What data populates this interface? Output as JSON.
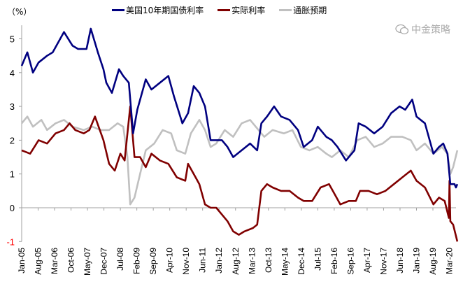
{
  "chart_data": {
    "type": "line",
    "title": "",
    "unit_label": "（%）",
    "xlabel": "",
    "ylabel": "%",
    "ylim": [
      -1,
      5.4
    ],
    "yticks": [
      5,
      4,
      3,
      2,
      1,
      0,
      -1
    ],
    "xlim": [
      2005.0,
      2020.45
    ],
    "xtick_labels": [
      "Jan-05",
      "Aug-05",
      "Mar-06",
      "Oct-06",
      "May-07",
      "Dec-07",
      "Jul-08",
      "Feb-09",
      "Sep-09",
      "Apr-10",
      "Nov-10",
      "Jun-11",
      "Jan-12",
      "Aug-12",
      "Mar-13",
      "Oct-13",
      "May-14",
      "Dec-14",
      "Jul-15",
      "Feb-16",
      "Sep-16",
      "Apr-17",
      "Nov-17",
      "Jun-18",
      "Jan-19",
      "Aug-19",
      "Mar-20"
    ],
    "legend_position": "top-center",
    "grid": false,
    "series": [
      {
        "name": "美国10年期国债利率",
        "color": "#000080",
        "points": [
          [
            2005.0,
            4.2
          ],
          [
            2005.1,
            4.4
          ],
          [
            2005.2,
            4.6
          ],
          [
            2005.4,
            4.0
          ],
          [
            2005.6,
            4.3
          ],
          [
            2005.9,
            4.5
          ],
          [
            2006.1,
            4.6
          ],
          [
            2006.5,
            5.2
          ],
          [
            2006.8,
            4.8
          ],
          [
            2007.0,
            4.7
          ],
          [
            2007.3,
            4.7
          ],
          [
            2007.45,
            5.3
          ],
          [
            2007.7,
            4.6
          ],
          [
            2007.9,
            4.1
          ],
          [
            2008.0,
            3.7
          ],
          [
            2008.2,
            3.4
          ],
          [
            2008.45,
            4.1
          ],
          [
            2008.6,
            3.9
          ],
          [
            2008.8,
            3.7
          ],
          [
            2008.95,
            2.2
          ],
          [
            2009.1,
            2.9
          ],
          [
            2009.4,
            3.8
          ],
          [
            2009.6,
            3.5
          ],
          [
            2009.9,
            3.7
          ],
          [
            2010.2,
            3.9
          ],
          [
            2010.4,
            3.3
          ],
          [
            2010.7,
            2.5
          ],
          [
            2010.9,
            2.8
          ],
          [
            2011.1,
            3.6
          ],
          [
            2011.3,
            3.4
          ],
          [
            2011.5,
            3.0
          ],
          [
            2011.7,
            2.0
          ],
          [
            2011.9,
            2.0
          ],
          [
            2012.1,
            2.0
          ],
          [
            2012.3,
            1.8
          ],
          [
            2012.5,
            1.5
          ],
          [
            2012.8,
            1.7
          ],
          [
            2013.1,
            1.9
          ],
          [
            2013.35,
            1.7
          ],
          [
            2013.5,
            2.5
          ],
          [
            2013.7,
            2.7
          ],
          [
            2013.95,
            3.0
          ],
          [
            2014.2,
            2.7
          ],
          [
            2014.5,
            2.6
          ],
          [
            2014.8,
            2.3
          ],
          [
            2015.0,
            1.8
          ],
          [
            2015.3,
            2.0
          ],
          [
            2015.5,
            2.4
          ],
          [
            2015.8,
            2.1
          ],
          [
            2016.0,
            2.0
          ],
          [
            2016.2,
            1.8
          ],
          [
            2016.5,
            1.4
          ],
          [
            2016.8,
            1.7
          ],
          [
            2016.95,
            2.5
          ],
          [
            2017.2,
            2.4
          ],
          [
            2017.5,
            2.2
          ],
          [
            2017.8,
            2.4
          ],
          [
            2018.1,
            2.8
          ],
          [
            2018.4,
            3.0
          ],
          [
            2018.6,
            2.9
          ],
          [
            2018.85,
            3.2
          ],
          [
            2019.0,
            2.7
          ],
          [
            2019.3,
            2.5
          ],
          [
            2019.6,
            1.6
          ],
          [
            2019.8,
            1.8
          ],
          [
            2019.95,
            1.9
          ],
          [
            2020.1,
            1.6
          ],
          [
            2020.2,
            0.7
          ],
          [
            2020.35,
            0.7
          ],
          [
            2020.4,
            0.6
          ],
          [
            2020.45,
            0.7
          ]
        ]
      },
      {
        "name": "实际利率",
        "color": "#800000",
        "points": [
          [
            2005.0,
            1.7
          ],
          [
            2005.3,
            1.6
          ],
          [
            2005.6,
            2.0
          ],
          [
            2005.9,
            1.9
          ],
          [
            2006.2,
            2.2
          ],
          [
            2006.5,
            2.3
          ],
          [
            2006.7,
            2.5
          ],
          [
            2006.9,
            2.3
          ],
          [
            2007.2,
            2.2
          ],
          [
            2007.4,
            2.3
          ],
          [
            2007.6,
            2.7
          ],
          [
            2007.9,
            2.0
          ],
          [
            2008.1,
            1.3
          ],
          [
            2008.3,
            1.1
          ],
          [
            2008.5,
            1.6
          ],
          [
            2008.65,
            1.4
          ],
          [
            2008.85,
            3.0
          ],
          [
            2009.0,
            1.5
          ],
          [
            2009.2,
            1.5
          ],
          [
            2009.4,
            1.2
          ],
          [
            2009.6,
            1.6
          ],
          [
            2009.9,
            1.4
          ],
          [
            2010.2,
            1.3
          ],
          [
            2010.5,
            0.9
          ],
          [
            2010.8,
            0.8
          ],
          [
            2010.9,
            1.3
          ],
          [
            2011.1,
            1.0
          ],
          [
            2011.3,
            0.7
          ],
          [
            2011.5,
            0.1
          ],
          [
            2011.7,
            0.0
          ],
          [
            2011.9,
            0.0
          ],
          [
            2012.1,
            -0.2
          ],
          [
            2012.3,
            -0.4
          ],
          [
            2012.5,
            -0.7
          ],
          [
            2012.7,
            -0.8
          ],
          [
            2012.9,
            -0.7
          ],
          [
            2013.2,
            -0.6
          ],
          [
            2013.35,
            -0.5
          ],
          [
            2013.5,
            0.5
          ],
          [
            2013.7,
            0.7
          ],
          [
            2013.9,
            0.6
          ],
          [
            2014.2,
            0.5
          ],
          [
            2014.5,
            0.5
          ],
          [
            2014.8,
            0.3
          ],
          [
            2015.0,
            0.2
          ],
          [
            2015.3,
            0.2
          ],
          [
            2015.6,
            0.6
          ],
          [
            2015.9,
            0.7
          ],
          [
            2016.1,
            0.4
          ],
          [
            2016.3,
            0.1
          ],
          [
            2016.6,
            0.2
          ],
          [
            2016.85,
            0.2
          ],
          [
            2017.0,
            0.5
          ],
          [
            2017.3,
            0.5
          ],
          [
            2017.6,
            0.4
          ],
          [
            2017.9,
            0.5
          ],
          [
            2018.2,
            0.7
          ],
          [
            2018.5,
            0.9
          ],
          [
            2018.8,
            1.1
          ],
          [
            2019.0,
            0.8
          ],
          [
            2019.3,
            0.6
          ],
          [
            2019.6,
            0.1
          ],
          [
            2019.8,
            0.3
          ],
          [
            2020.0,
            0.2
          ],
          [
            2020.15,
            -0.3
          ],
          [
            2020.17,
            0.8
          ],
          [
            2020.2,
            -0.4
          ],
          [
            2020.3,
            -0.5
          ],
          [
            2020.45,
            -1.0
          ]
        ]
      },
      {
        "name": "通胀预期",
        "color": "#c0c0c0",
        "points": [
          [
            2005.0,
            2.5
          ],
          [
            2005.2,
            2.7
          ],
          [
            2005.4,
            2.4
          ],
          [
            2005.7,
            2.6
          ],
          [
            2005.9,
            2.3
          ],
          [
            2006.2,
            2.5
          ],
          [
            2006.5,
            2.6
          ],
          [
            2006.8,
            2.4
          ],
          [
            2007.2,
            2.3
          ],
          [
            2007.5,
            2.4
          ],
          [
            2007.8,
            2.3
          ],
          [
            2008.1,
            2.3
          ],
          [
            2008.4,
            2.5
          ],
          [
            2008.6,
            2.4
          ],
          [
            2008.75,
            1.5
          ],
          [
            2008.85,
            0.1
          ],
          [
            2009.0,
            0.3
          ],
          [
            2009.2,
            1.0
          ],
          [
            2009.4,
            1.7
          ],
          [
            2009.7,
            1.9
          ],
          [
            2010.0,
            2.3
          ],
          [
            2010.3,
            2.2
          ],
          [
            2010.5,
            1.7
          ],
          [
            2010.8,
            1.6
          ],
          [
            2011.0,
            2.2
          ],
          [
            2011.3,
            2.6
          ],
          [
            2011.5,
            2.3
          ],
          [
            2011.7,
            1.8
          ],
          [
            2011.9,
            1.9
          ],
          [
            2012.2,
            2.3
          ],
          [
            2012.5,
            2.1
          ],
          [
            2012.8,
            2.5
          ],
          [
            2013.1,
            2.6
          ],
          [
            2013.4,
            2.3
          ],
          [
            2013.6,
            2.1
          ],
          [
            2013.9,
            2.3
          ],
          [
            2014.3,
            2.2
          ],
          [
            2014.6,
            2.3
          ],
          [
            2014.9,
            1.8
          ],
          [
            2015.2,
            1.7
          ],
          [
            2015.5,
            1.8
          ],
          [
            2015.8,
            1.6
          ],
          [
            2016.0,
            1.5
          ],
          [
            2016.3,
            1.7
          ],
          [
            2016.6,
            1.5
          ],
          [
            2016.9,
            2.0
          ],
          [
            2017.2,
            2.1
          ],
          [
            2017.5,
            1.8
          ],
          [
            2017.8,
            1.9
          ],
          [
            2018.1,
            2.1
          ],
          [
            2018.5,
            2.1
          ],
          [
            2018.8,
            2.0
          ],
          [
            2019.0,
            1.7
          ],
          [
            2019.3,
            1.9
          ],
          [
            2019.6,
            1.6
          ],
          [
            2019.9,
            1.8
          ],
          [
            2020.1,
            1.6
          ],
          [
            2020.2,
            1.0
          ],
          [
            2020.3,
            1.2
          ],
          [
            2020.45,
            1.7
          ]
        ]
      }
    ]
  },
  "watermark": "中金策略",
  "negative_tick_color": "#ff0000"
}
